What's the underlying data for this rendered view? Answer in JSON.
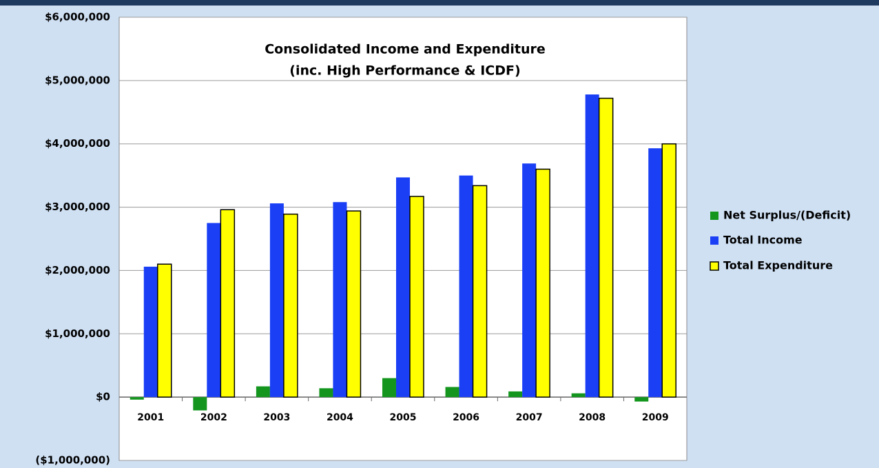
{
  "chart_data": {
    "type": "bar",
    "title": "Consolidated Income and Expenditure",
    "subtitle": "(inc. High Performance & ICDF)",
    "categories": [
      "2001",
      "2002",
      "2003",
      "2004",
      "2005",
      "2006",
      "2007",
      "2008",
      "2009"
    ],
    "series": [
      {
        "name": "Net Surplus/(Deficit)",
        "color": "#14961e",
        "values": [
          -40000,
          -210000,
          170000,
          140000,
          300000,
          160000,
          90000,
          60000,
          -70000
        ]
      },
      {
        "name": "Total Income",
        "color": "#1a3ff5",
        "values": [
          2060000,
          2750000,
          3060000,
          3080000,
          3470000,
          3500000,
          3690000,
          4780000,
          3930000
        ]
      },
      {
        "name": "Total Expenditure",
        "color": "#ffff00",
        "values": [
          2100000,
          2960000,
          2890000,
          2940000,
          3170000,
          3340000,
          3600000,
          4720000,
          4000000
        ]
      }
    ],
    "ylim": [
      -1000000,
      6000000
    ],
    "yticks": [
      {
        "value": -1000000,
        "label": "($1,000,000)"
      },
      {
        "value": 0,
        "label": "$0"
      },
      {
        "value": 1000000,
        "label": "$1,000,000"
      },
      {
        "value": 2000000,
        "label": "$2,000,000"
      },
      {
        "value": 3000000,
        "label": "$3,000,000"
      },
      {
        "value": 4000000,
        "label": "$4,000,000"
      },
      {
        "value": 5000000,
        "label": "$5,000,000"
      },
      {
        "value": 6000000,
        "label": "$6,000,000"
      }
    ],
    "negative_tick_color": "#e00000",
    "grid": true,
    "legend": "right"
  }
}
